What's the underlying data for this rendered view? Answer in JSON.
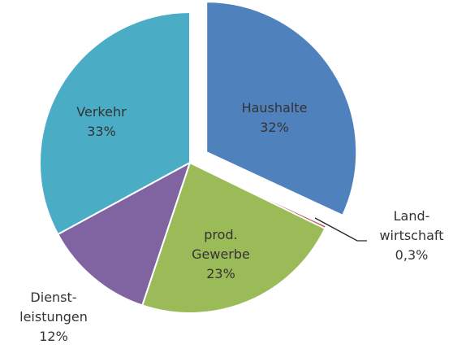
{
  "chart_data": {
    "type": "pie",
    "categories": [
      "Haushalte",
      "Land-\nwirtschaft",
      "prod.\nGewerbe",
      "Dienst-\nleistungen",
      "Verkehr"
    ],
    "values": [
      32,
      0.3,
      23,
      12,
      33
    ],
    "value_labels": [
      "32%",
      "0,3%",
      "23%",
      "12%",
      "33%"
    ],
    "colors": [
      "#4f81bd",
      "#c0504d",
      "#9bbb59",
      "#8064a2",
      "#4bacc6"
    ],
    "exploded": [
      true,
      false,
      false,
      false,
      false
    ]
  }
}
